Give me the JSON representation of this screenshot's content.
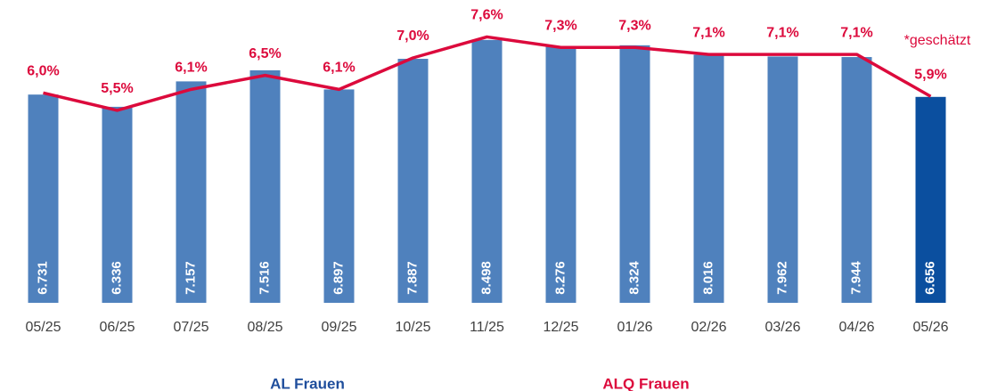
{
  "chart_data": {
    "type": "bar-line",
    "categories": [
      "05/25",
      "06/25",
      "07/25",
      "08/25",
      "09/25",
      "10/25",
      "11/25",
      "12/25",
      "01/26",
      "02/26",
      "03/26",
      "04/26",
      "05/26"
    ],
    "series": [
      {
        "name": "AL Frauen",
        "type": "bar",
        "color": "#4f81bd",
        "colors": [
          "#4f81bd",
          "#4f81bd",
          "#4f81bd",
          "#4f81bd",
          "#4f81bd",
          "#4f81bd",
          "#4f81bd",
          "#4f81bd",
          "#4f81bd",
          "#4f81bd",
          "#4f81bd",
          "#4f81bd",
          "#0b4f9f"
        ],
        "values": [
          6731,
          6336,
          7157,
          7516,
          6897,
          7887,
          8498,
          8276,
          8324,
          8016,
          7962,
          7944,
          6656
        ],
        "value_labels": [
          "6.731",
          "6.336",
          "7.157",
          "7.516",
          "6.897",
          "7.887",
          "8.498",
          "8.276",
          "8.324",
          "8.016",
          "7.962",
          "7.944",
          "6.656"
        ]
      },
      {
        "name": "ALQ Frauen",
        "type": "line",
        "axis": "y2",
        "color": "#dc0a3c",
        "values": [
          6.0,
          5.5,
          6.1,
          6.5,
          6.1,
          7.0,
          7.6,
          7.3,
          7.3,
          7.1,
          7.1,
          7.1,
          5.9
        ],
        "value_labels": [
          "6,0%",
          "5,5%",
          "6,1%",
          "6,5%",
          "6,1%",
          "7,0%",
          "7,6%",
          "7,3%",
          "7,3%",
          "7,1%",
          "7,1%",
          "7,1%",
          "5,9%"
        ]
      }
    ],
    "ylim": [
      0,
      9500
    ],
    "y2lim": [
      0,
      8.4
    ],
    "annotation": "*geschätzt",
    "legend": "bottom"
  }
}
